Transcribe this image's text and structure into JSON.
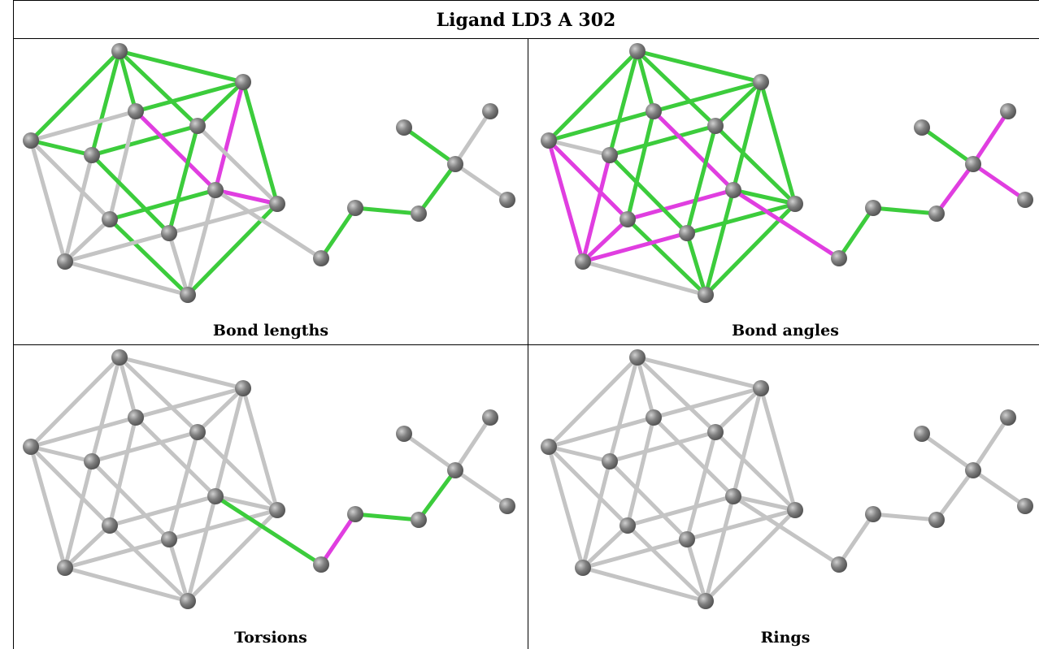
{
  "title": "Ligand LD3 A 302",
  "panels": [
    {
      "caption": "Bond lengths"
    },
    {
      "caption": "Bond angles"
    },
    {
      "caption": "Torsions"
    },
    {
      "caption": "Rings"
    }
  ]
}
